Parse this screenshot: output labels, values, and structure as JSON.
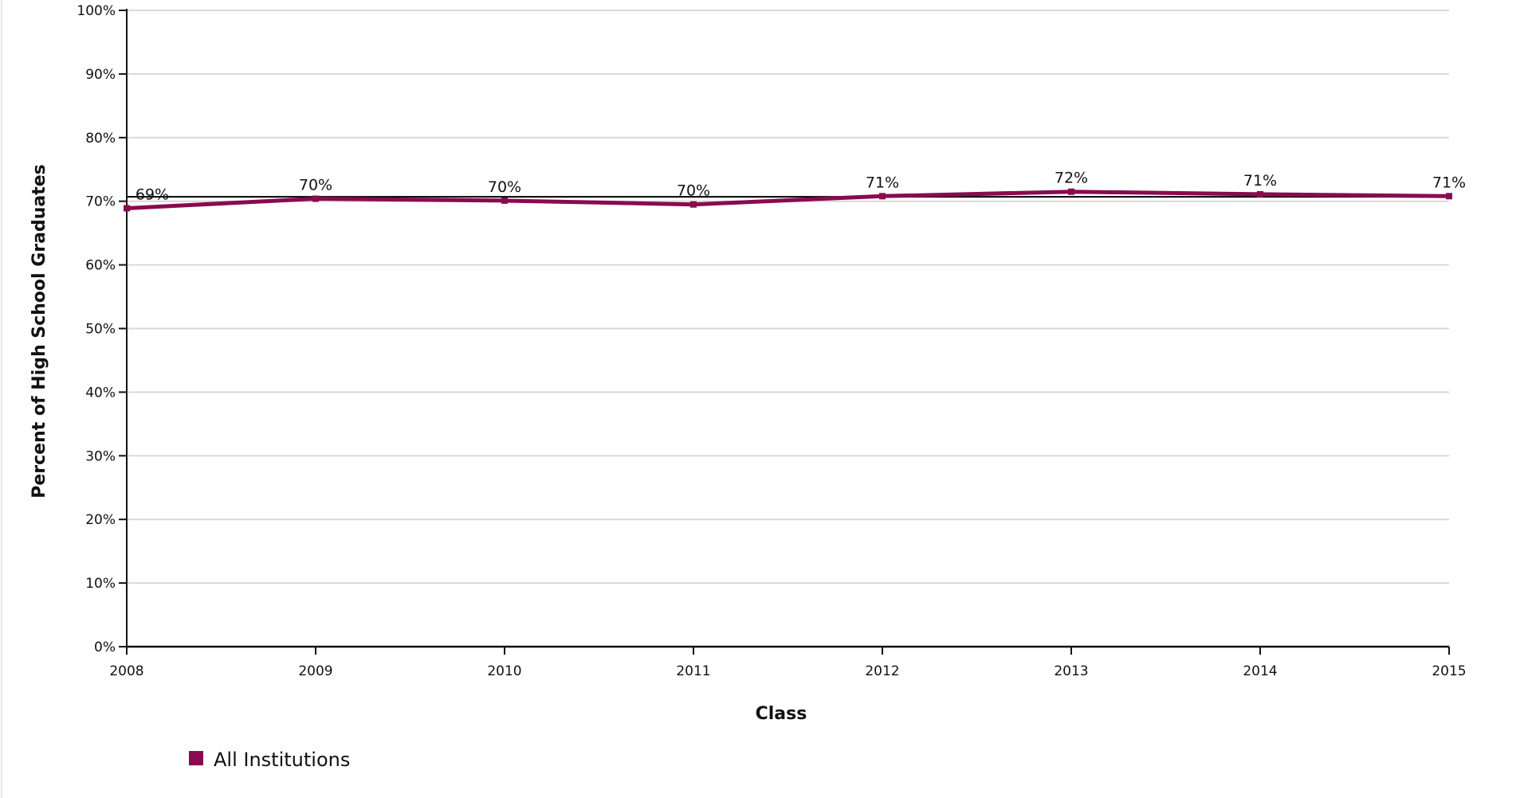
{
  "chart_data": {
    "type": "line",
    "title": "",
    "xlabel": "Class",
    "ylabel": "Percent of High School Graduates",
    "ylim": [
      0,
      100
    ],
    "y_ticks": [
      "0%",
      "10%",
      "20%",
      "30%",
      "40%",
      "50%",
      "60%",
      "70%",
      "80%",
      "90%",
      "100%"
    ],
    "categories": [
      "2008",
      "2009",
      "2010",
      "2011",
      "2012",
      "2013",
      "2014",
      "2015"
    ],
    "series": [
      {
        "name": "All Institutions",
        "color": "#8a0a4f",
        "values": [
          68.9,
          70.4,
          70.1,
          69.5,
          70.8,
          71.5,
          71.1,
          70.8
        ],
        "labels": [
          "69%",
          "70%",
          "70%",
          "70%",
          "71%",
          "72%",
          "71%",
          "71%"
        ]
      }
    ],
    "reference_line": {
      "value": 70.7,
      "color": "#000000"
    },
    "grid": true,
    "legend_position": "bottom-left"
  }
}
